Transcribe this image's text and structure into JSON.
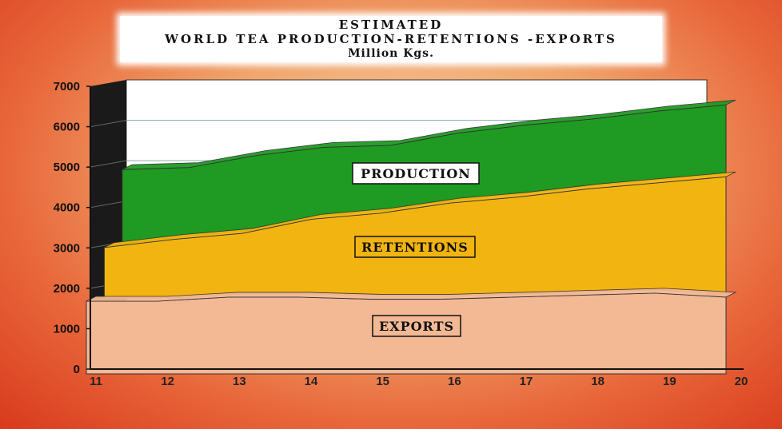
{
  "title": {
    "line1": "ESTIMATED",
    "line2": "WORLD TEA PRODUCTION-RETENTIONS -EXPORTS",
    "line3": "Million Kgs."
  },
  "chart_data": {
    "type": "area",
    "title": "ESTIMATED WORLD TEA PRODUCTION-RETENTIONS -EXPORTS",
    "subtitle": "Million Kgs.",
    "x": [
      11,
      12,
      13,
      14,
      15,
      16,
      17,
      18,
      19,
      20
    ],
    "x_ticks": [
      "11",
      "12",
      "13",
      "14",
      "15",
      "16",
      "17",
      "18",
      "19",
      "20"
    ],
    "y_ticks": [
      "0",
      "1000",
      "2000",
      "3000",
      "4000",
      "5000",
      "6000",
      "7000"
    ],
    "ylim": [
      0,
      7000
    ],
    "stacked": true,
    "series": [
      {
        "name": "EXPORTS",
        "color": "#f3b894",
        "values": [
          1800,
          1800,
          1900,
          1900,
          1850,
          1850,
          1900,
          1950,
          2000,
          1900
        ]
      },
      {
        "name": "RETENTIONS",
        "color": "#f2b410",
        "values": [
          1250,
          1450,
          1500,
          1850,
          2050,
          2300,
          2400,
          2550,
          2650,
          2900
        ]
      },
      {
        "name": "PRODUCTION",
        "color": "#1f9a22",
        "values": [
          1850,
          1700,
          1850,
          1700,
          1600,
          1650,
          1700,
          1650,
          1700,
          1700
        ]
      }
    ],
    "grid": true
  },
  "colors": {
    "exports_fill": "#f3b894",
    "retentions_fill": "#f2b410",
    "production_fill": "#1f9a22",
    "wall": "#ffffff",
    "side_wall": "#1a1a1a"
  }
}
